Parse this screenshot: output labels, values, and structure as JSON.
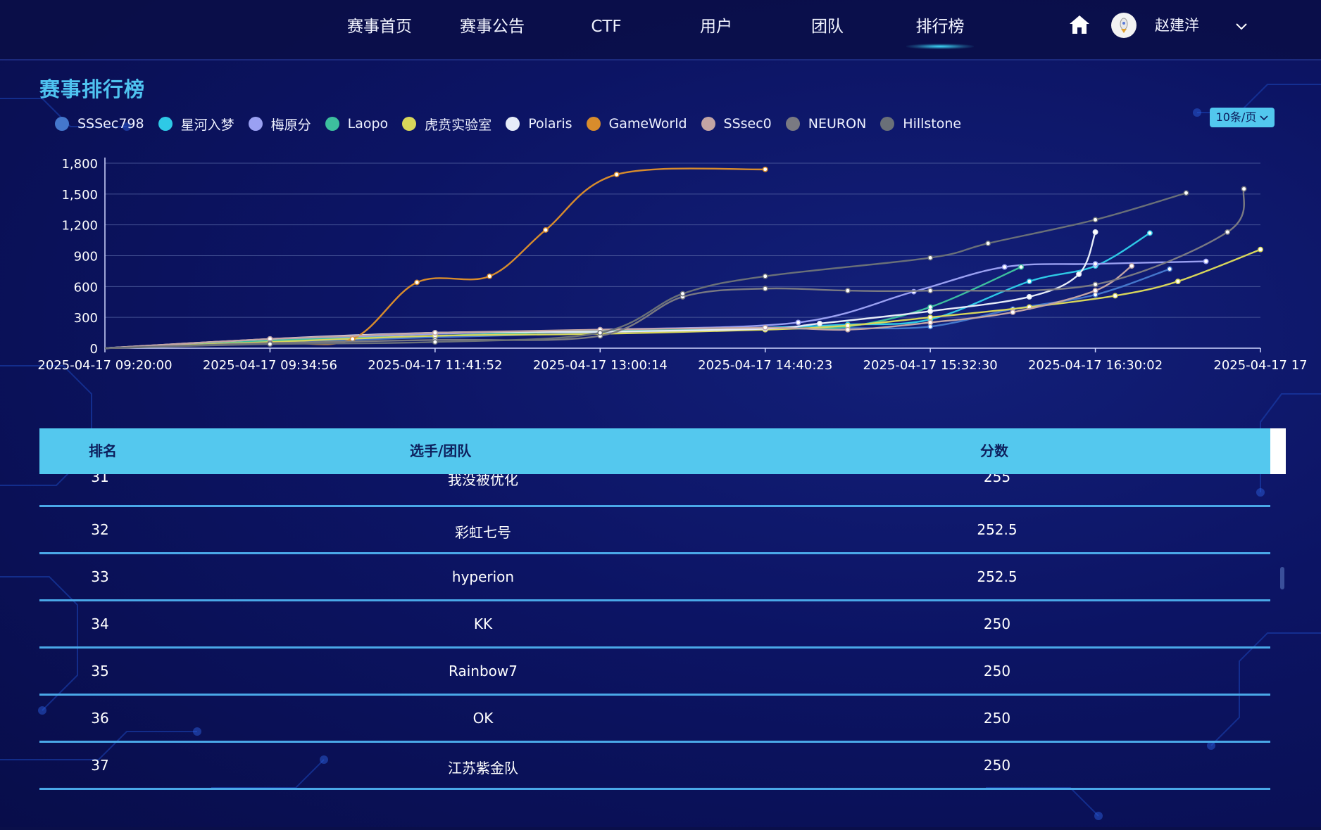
{
  "nav": {
    "items": [
      {
        "label": "赛事首页"
      },
      {
        "label": "赛事公告"
      },
      {
        "label": "CTF"
      },
      {
        "label": "用户"
      },
      {
        "label": "团队"
      },
      {
        "label": "排行榜"
      }
    ],
    "active": "排行榜",
    "user_name": "赵建洋"
  },
  "page_title": "赛事排行榜",
  "page_size_select": "10条/页",
  "legend": [
    {
      "name": "SSSec798",
      "color": "#4477cc"
    },
    {
      "name": "星河入梦",
      "color": "#2ec9e6"
    },
    {
      "name": "梅原分",
      "color": "#9aa0f2"
    },
    {
      "name": "Laopo",
      "color": "#3dbf9e"
    },
    {
      "name": "虎贲实验室",
      "color": "#d8d65a"
    },
    {
      "name": "Polaris",
      "color": "#e6ecf8"
    },
    {
      "name": "GameWorld",
      "color": "#d88c2c"
    },
    {
      "name": "SSsec0",
      "color": "#c2a4a4"
    },
    {
      "name": "NEURON",
      "color": "#7a7a82"
    },
    {
      "name": "Hillstone",
      "color": "#6a7078"
    }
  ],
  "chart_data": {
    "type": "line",
    "x_ticks": [
      "2025-04-17 09:20:00",
      "2025-04-17 09:34:56",
      "2025-04-17 11:41:52",
      "2025-04-17 13:00:14",
      "2025-04-17 14:40:23",
      "2025-04-17 15:32:30",
      "2025-04-17 16:30:02",
      "2025-04-17 17"
    ],
    "y_ticks": [
      "0",
      "300",
      "600",
      "900",
      "1,200",
      "1,500",
      "1,800"
    ],
    "ylim": [
      0,
      1800
    ],
    "grid": true,
    "legend_position": "top-left",
    "series": [
      {
        "name": "SSSec798",
        "color": "#4477cc",
        "points": [
          [
            0,
            0
          ],
          [
            1.0,
            60
          ],
          [
            3.0,
            150
          ],
          [
            4.0,
            190
          ],
          [
            4.5,
            195
          ],
          [
            5.0,
            210
          ],
          [
            5.5,
            380
          ],
          [
            6.0,
            520
          ],
          [
            6.45,
            770
          ]
        ]
      },
      {
        "name": "星河入梦",
        "color": "#2ec9e6",
        "points": [
          [
            0,
            0
          ],
          [
            1.0,
            70
          ],
          [
            2.0,
            150
          ],
          [
            3.0,
            160
          ],
          [
            4.0,
            200
          ],
          [
            4.5,
            230
          ],
          [
            5.0,
            280
          ],
          [
            5.6,
            650
          ],
          [
            6.0,
            800
          ],
          [
            6.33,
            1120
          ]
        ]
      },
      {
        "name": "梅原分",
        "color": "#9aa0f2",
        "points": [
          [
            0,
            0
          ],
          [
            1.0,
            80
          ],
          [
            2.0,
            140
          ],
          [
            3.0,
            180
          ],
          [
            4.2,
            250
          ],
          [
            4.9,
            550
          ],
          [
            5.45,
            790
          ],
          [
            6.0,
            820
          ],
          [
            6.67,
            845
          ]
        ]
      },
      {
        "name": "Laopo",
        "color": "#3dbf9e",
        "points": [
          [
            0,
            0
          ],
          [
            1.0,
            75
          ],
          [
            2.0,
            120
          ],
          [
            3.0,
            170
          ],
          [
            4.0,
            190
          ],
          [
            4.5,
            210
          ],
          [
            5.0,
            400
          ],
          [
            5.55,
            790
          ]
        ]
      },
      {
        "name": "虎贲实验室",
        "color": "#d8d65a",
        "points": [
          [
            0,
            0
          ],
          [
            1.0,
            60
          ],
          [
            2.0,
            120
          ],
          [
            3.0,
            140
          ],
          [
            4.0,
            180
          ],
          [
            4.5,
            220
          ],
          [
            5.0,
            300
          ],
          [
            5.6,
            400
          ],
          [
            6.12,
            510
          ],
          [
            6.5,
            650
          ],
          [
            7.0,
            960
          ]
        ]
      },
      {
        "name": "Polaris",
        "color": "#e6ecf8",
        "points": [
          [
            0,
            0
          ],
          [
            1.0,
            90
          ],
          [
            2.0,
            150
          ],
          [
            3.0,
            160
          ],
          [
            4.0,
            190
          ],
          [
            4.33,
            240
          ],
          [
            5.0,
            360
          ],
          [
            5.6,
            500
          ],
          [
            5.9,
            720
          ],
          [
            6.0,
            1130
          ]
        ]
      },
      {
        "name": "GameWorld",
        "color": "#d88c2c",
        "points": [
          [
            0,
            0
          ],
          [
            1.0,
            50
          ],
          [
            1.5,
            90
          ],
          [
            1.89,
            640
          ],
          [
            2.33,
            700
          ],
          [
            2.67,
            1150
          ],
          [
            3.1,
            1690
          ],
          [
            4.0,
            1740
          ]
        ]
      },
      {
        "name": "SSsec0",
        "color": "#c2a4a4",
        "points": [
          [
            0,
            0
          ],
          [
            1.0,
            90
          ],
          [
            2.0,
            150
          ],
          [
            3.0,
            180
          ],
          [
            4.0,
            200
          ],
          [
            4.5,
            180
          ],
          [
            5.0,
            250
          ],
          [
            5.5,
            350
          ],
          [
            6.0,
            560
          ],
          [
            6.22,
            800
          ]
        ]
      },
      {
        "name": "NEURON",
        "color": "#7a7a82",
        "points": [
          [
            0,
            0
          ],
          [
            1.0,
            50
          ],
          [
            2.0,
            80
          ],
          [
            3.0,
            120
          ],
          [
            3.5,
            500
          ],
          [
            4.0,
            580
          ],
          [
            4.5,
            560
          ],
          [
            5.0,
            560
          ],
          [
            6.0,
            620
          ],
          [
            6.8,
            1130
          ],
          [
            6.9,
            1550
          ]
        ]
      },
      {
        "name": "Hillstone",
        "color": "#6a7078",
        "points": [
          [
            0,
            0
          ],
          [
            1.0,
            40
          ],
          [
            2.0,
            60
          ],
          [
            3.0,
            150
          ],
          [
            3.5,
            530
          ],
          [
            4.0,
            700
          ],
          [
            5.0,
            880
          ],
          [
            5.35,
            1020
          ],
          [
            6.0,
            1250
          ],
          [
            6.55,
            1510
          ]
        ]
      }
    ]
  },
  "table": {
    "headers": {
      "rank": "排名",
      "team": "选手/团队",
      "score": "分数"
    },
    "rows": [
      {
        "rank": "31",
        "team": "我没被优化",
        "score": "255"
      },
      {
        "rank": "32",
        "team": "彩虹七号",
        "score": "252.5"
      },
      {
        "rank": "33",
        "team": "hyperion",
        "score": "252.5"
      },
      {
        "rank": "34",
        "team": "KK",
        "score": "250"
      },
      {
        "rank": "35",
        "team": "Rainbow7",
        "score": "250"
      },
      {
        "rank": "36",
        "team": "OK",
        "score": "250"
      },
      {
        "rank": "37",
        "team": "江苏紫金队",
        "score": "250"
      }
    ]
  }
}
